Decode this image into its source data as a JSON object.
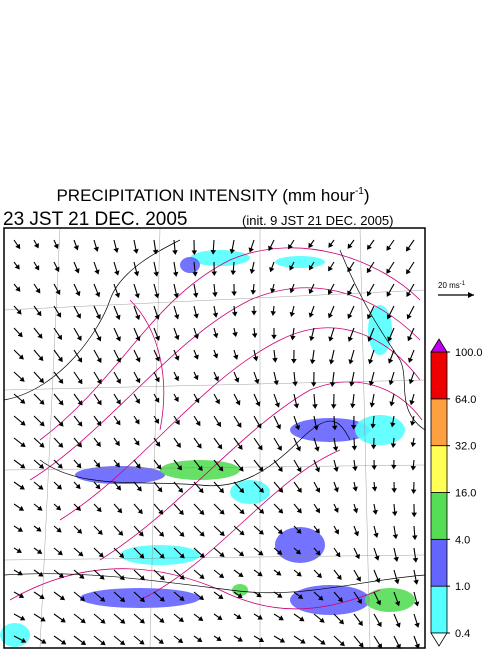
{
  "header": {
    "title": {
      "main": "PRECIPITATION INTENSITY (mm hour",
      "sup": "-1",
      "close": ")"
    },
    "valid_time": "23 JST 21 DEC. 2005",
    "init_time": "(init. 9 JST 21 DEC. 2005)"
  },
  "vector_scale": {
    "main": "20 ms",
    "sup": "-1"
  },
  "colorbar": {
    "ticks": [
      {
        "value": 0.4,
        "label": "0.4"
      },
      {
        "value": 1,
        "label": "1.0"
      },
      {
        "value": 4,
        "label": "4.0"
      },
      {
        "value": 16,
        "label": "16.0"
      },
      {
        "value": 32,
        "label": "32.0"
      },
      {
        "value": 64,
        "label": "64.0"
      },
      {
        "value": 100,
        "label": "100.0"
      }
    ],
    "colors": [
      "#55ffff",
      "#6464ff",
      "#55dd55",
      "#ffff55",
      "#ffa040",
      "#ee0000"
    ],
    "under_color": "#ffffff",
    "over_color": "#bb00ee"
  }
}
